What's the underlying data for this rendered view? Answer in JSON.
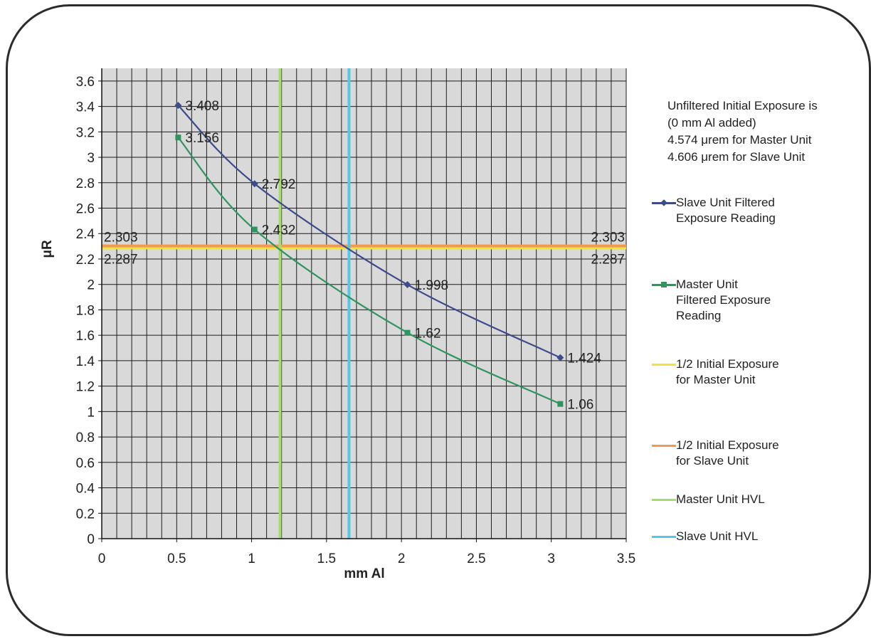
{
  "chart_data": {
    "type": "line",
    "title": "",
    "xlabel": "mm Al",
    "ylabel": "μR",
    "xlim": [
      0,
      3.5
    ],
    "ylim": [
      0,
      3.6
    ],
    "x_ticks": [
      "0",
      "0.5",
      "1",
      "1.5",
      "2",
      "2.5",
      "3",
      "3.5"
    ],
    "y_ticks": [
      "0",
      "0.2",
      "0.4",
      "0.6",
      "0.8",
      "1",
      "1.2",
      "1.4",
      "1.6",
      "1.8",
      "2",
      "2.2",
      "2.4",
      "2.6",
      "2.8",
      "3",
      "3.2",
      "3.4",
      "3.6"
    ],
    "x_minor_step": 0.1,
    "y_minor_step": 0.2,
    "grid": true,
    "legend_position": "right",
    "series": [
      {
        "name": "Slave Unit Filtered Exposure Reading",
        "color": "#3d4b8a",
        "marker": "diamond",
        "x": [
          0.51,
          1.02,
          2.04,
          3.06
        ],
        "y": [
          3.408,
          2.792,
          1.998,
          1.424
        ],
        "labels": [
          "3.408",
          "2.792",
          "1.998",
          "1.424"
        ]
      },
      {
        "name": "Master Unit Filtered Exposure Reading",
        "color": "#2e9460",
        "marker": "square",
        "x": [
          0.51,
          1.02,
          2.04,
          3.06
        ],
        "y": [
          3.156,
          2.432,
          1.62,
          1.06
        ],
        "labels": [
          "3.156",
          "2.432",
          "1.62",
          "1.06"
        ]
      }
    ],
    "reference_lines": [
      {
        "name": "1/2 Initial Exposure for Master Unit",
        "orientation": "horizontal",
        "value": 2.287,
        "color": "#f0e33c",
        "labels": [
          "2.287",
          "2.287"
        ]
      },
      {
        "name": "1/2 Initial Exposure for Slave Unit",
        "orientation": "horizontal",
        "value": 2.303,
        "color": "#ee9a55",
        "labels": [
          "2.303",
          "2.303"
        ]
      },
      {
        "name": "Master Unit HVL",
        "orientation": "vertical",
        "value": 1.19,
        "color": "#a6dc6e"
      },
      {
        "name": "Slave Unit HVL",
        "orientation": "vertical",
        "value": 1.65,
        "color": "#54c7e8"
      }
    ]
  },
  "note": {
    "lines": [
      "Unfiltered Initial Exposure is",
      "(0 mm Al added)",
      "4.574 μrem for Master Unit",
      "4.606 μrem for Slave Unit"
    ]
  },
  "legend": [
    {
      "text": "Slave Unit Filtered\nExposure Reading",
      "color": "#3d4b8a",
      "marker": "diamond"
    },
    {
      "text": "Master Unit\nFiltered Exposure\nReading",
      "color": "#2e9460",
      "marker": "square"
    },
    {
      "text": "1/2 Initial Exposure\nfor Master Unit",
      "color": "#f0e33c",
      "marker": "none"
    },
    {
      "text": "1/2 Initial Exposure\nfor Slave Unit",
      "color": "#ee9a55",
      "marker": "none"
    },
    {
      "text": "Master Unit HVL",
      "color": "#a6dc6e",
      "marker": "none"
    },
    {
      "text": "Slave Unit HVL",
      "color": "#54c7e8",
      "marker": "none"
    }
  ]
}
